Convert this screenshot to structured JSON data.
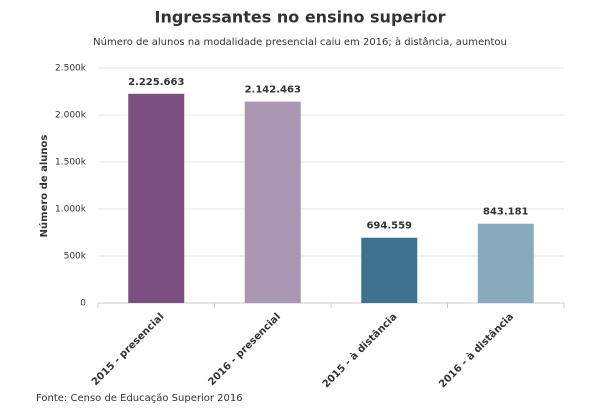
{
  "chart_data": {
    "type": "bar",
    "title": "Ingressantes no ensino superior",
    "subtitle": "Número de alunos na modalidade presencial caiu em 2016; à distância, aumentou",
    "y_label": "Número de alunos",
    "source": "Fonte: Censo de Educação Superior 2016",
    "categories": [
      "2015 - presencial",
      "2016 - presencial",
      "2015 - à distância",
      "2016 - à distância"
    ],
    "values": [
      2225663,
      2142463,
      694559,
      843181
    ],
    "value_labels": [
      "2.225.663",
      "2.142.463",
      "694.559",
      "843.181"
    ],
    "colors": [
      "#7b4f80",
      "#ab96b3",
      "#3d7391",
      "#89a9bd"
    ],
    "ylim": [
      0,
      2500000
    ],
    "yticks": [
      0,
      {
        "value": 500000,
        "label": "500k"
      },
      {
        "value": 1000000,
        "label": "1.000k"
      },
      {
        "value": 1500000,
        "label": "1.500k"
      },
      {
        "value": 2000000,
        "label": "2.000k"
      },
      {
        "value": 2500000,
        "label": "2.500k"
      }
    ],
    "grid": true
  }
}
